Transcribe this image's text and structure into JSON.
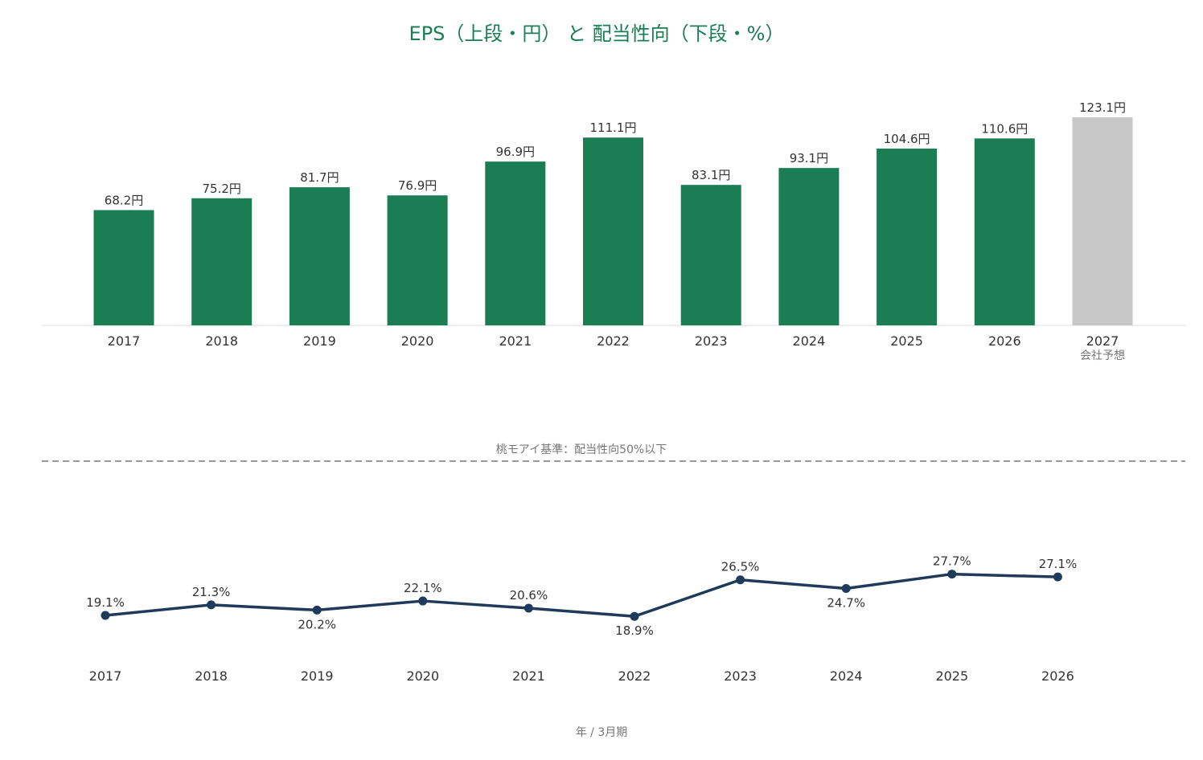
{
  "chart_data": [
    {
      "type": "bar",
      "title": "EPS（上段・円） と 配当性向（下段・%）",
      "categories": [
        "2017",
        "2018",
        "2019",
        "2020",
        "2021",
        "2022",
        "2023",
        "2024",
        "2025",
        "2026",
        "2027"
      ],
      "values": [
        68.2,
        75.2,
        81.7,
        76.9,
        96.9,
        111.1,
        83.1,
        93.1,
        104.6,
        110.6,
        123.1
      ],
      "data_labels": [
        "68.2円",
        "75.2円",
        "81.7円",
        "76.9円",
        "96.9円",
        "111.1円",
        "83.1円",
        "93.1円",
        "104.6円",
        "110.6円",
        "123.1円"
      ],
      "forecast_index": 10,
      "forecast_note": "会社予想",
      "colors": {
        "actual": "#1b7d53",
        "forecast": "#c8c8c8"
      }
    },
    {
      "type": "line",
      "categories": [
        "2017",
        "2018",
        "2019",
        "2020",
        "2021",
        "2022",
        "2023",
        "2024",
        "2025",
        "2026"
      ],
      "values": [
        19.1,
        21.3,
        20.2,
        22.1,
        20.6,
        18.9,
        26.5,
        24.7,
        27.7,
        27.1
      ],
      "data_labels": [
        "19.1%",
        "21.3%",
        "20.2%",
        "22.1%",
        "20.6%",
        "18.9%",
        "26.5%",
        "24.7%",
        "27.7%",
        "27.1%"
      ],
      "reference_line": {
        "value": 50,
        "label": "桃モアイ基準：配当性向50%以下"
      },
      "colors": {
        "line": "#1f3a5a",
        "reference": "#999999"
      }
    }
  ],
  "xaxis_note": "年 / 3月期"
}
